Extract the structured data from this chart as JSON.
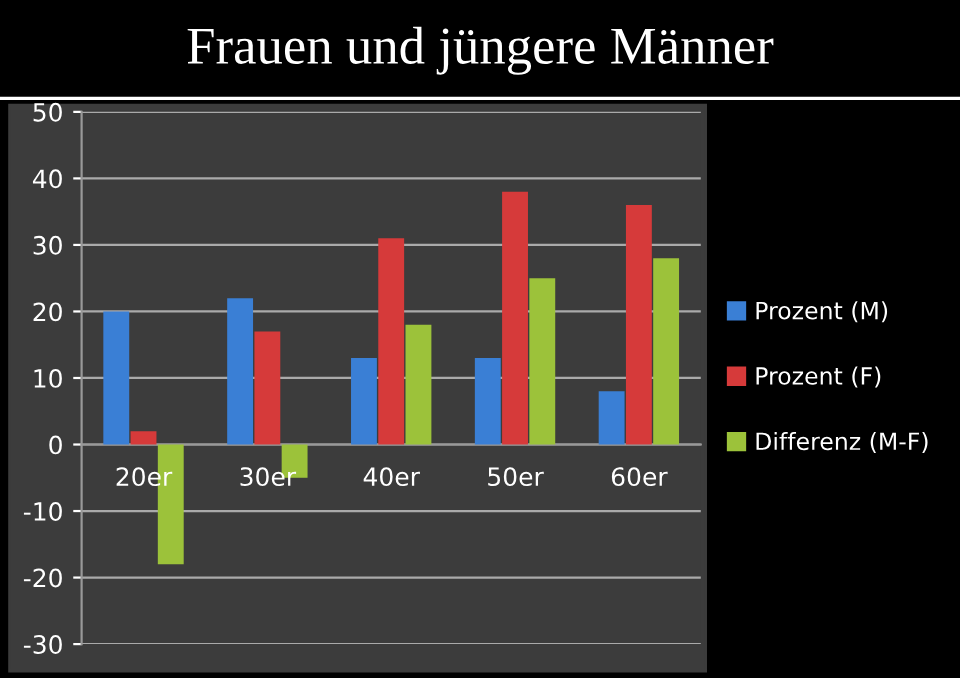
{
  "chart_data": {
    "type": "bar",
    "title": "Frauen und jüngere Männer",
    "categories": [
      "20er",
      "30er",
      "40er",
      "50er",
      "60er"
    ],
    "series": [
      {
        "name": "Prozent (M)",
        "color": "#3a7fd5",
        "values": [
          20,
          22,
          13,
          13,
          8
        ]
      },
      {
        "name": "Prozent (F)",
        "color": "#d63a3a",
        "values": [
          2,
          17,
          31,
          38,
          36
        ]
      },
      {
        "name": "Differenz (M-F)",
        "color": "#9cc23a",
        "values": [
          -18,
          -5,
          18,
          25,
          28
        ]
      }
    ],
    "ylim": [
      -30,
      50
    ],
    "yticks": [
      -30,
      -20,
      -10,
      0,
      10,
      20,
      30,
      40,
      50
    ],
    "grid": "y",
    "legend": "right"
  }
}
